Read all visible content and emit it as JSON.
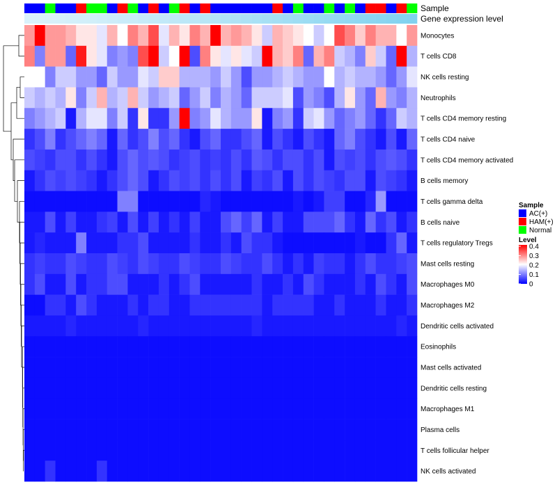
{
  "chart_data": {
    "type": "heatmap",
    "annotation_labels": {
      "sample": "Sample",
      "expression": "Gene expression level"
    },
    "rows": [
      "Monocytes",
      "T cells CD8",
      "NK cells resting",
      "Neutrophils",
      "T cells CD4 memory resting",
      "T cells CD4 naive",
      "T cells CD4 memory activated",
      "B cells memory",
      "T cells gamma delta",
      "B cells naive",
      "T cells regulatory  Tregs",
      "Mast cells resting",
      "Macrophages M0",
      "Macrophages M2",
      "Dendritic cells activated",
      "Eosinophils",
      "Mast cells activated",
      "Dendritic cells resting",
      "Macrophages M1",
      "Plasma cells",
      "T cells follicular helper",
      "NK cells activated"
    ],
    "sample_groups": [
      "AC(+)",
      "AC(+)",
      "Normal",
      "AC(+)",
      "AC(+)",
      "HAM(+)",
      "Normal",
      "Normal",
      "AC(+)",
      "HAM(+)",
      "Normal",
      "AC(+)",
      "HAM(+)",
      "AC(+)",
      "Normal",
      "HAM(+)",
      "AC(+)",
      "HAM(+)",
      "AC(+)",
      "AC(+)",
      "AC(+)",
      "AC(+)",
      "AC(+)",
      "AC(+)",
      "HAM(+)",
      "AC(+)",
      "Normal",
      "AC(+)",
      "AC(+)",
      "Normal",
      "AC(+)",
      "Normal",
      "AC(+)",
      "HAM(+)",
      "HAM(+)",
      "AC(+)",
      "HAM(+)",
      "Normal"
    ],
    "values": [
      [
        0.28,
        0.42,
        0.28,
        0.28,
        0.26,
        0.22,
        0.22,
        0.18,
        0.26,
        0.2,
        0.3,
        0.26,
        0.34,
        0.18,
        0.26,
        0.22,
        0.3,
        0.26,
        0.42,
        0.26,
        0.28,
        0.26,
        0.22,
        0.16,
        0.26,
        0.24,
        0.22,
        0.2,
        0.16,
        0.2,
        0.34,
        0.3,
        0.24,
        0.3,
        0.26,
        0.26,
        0.2,
        0.28
      ],
      [
        0.3,
        0.1,
        0.28,
        0.28,
        0.08,
        0.38,
        0.22,
        0.18,
        0.1,
        0.12,
        0.1,
        0.34,
        0.4,
        0.16,
        0.2,
        0.4,
        0.06,
        0.3,
        0.22,
        0.18,
        0.22,
        0.18,
        0.16,
        0.42,
        0.26,
        0.24,
        0.3,
        0.08,
        0.26,
        0.3,
        0.16,
        0.14,
        0.1,
        0.24,
        0.16,
        0.08,
        0.42,
        0.14
      ],
      [
        0.2,
        0.2,
        0.1,
        0.16,
        0.16,
        0.12,
        0.12,
        0.08,
        0.16,
        0.12,
        0.12,
        0.18,
        0.16,
        0.24,
        0.24,
        0.14,
        0.14,
        0.14,
        0.12,
        0.16,
        0.12,
        0.06,
        0.12,
        0.12,
        0.14,
        0.16,
        0.14,
        0.12,
        0.12,
        0.2,
        0.14,
        0.16,
        0.14,
        0.14,
        0.12,
        0.08,
        0.12,
        0.18
      ],
      [
        0.16,
        0.14,
        0.16,
        0.14,
        0.22,
        0.1,
        0.16,
        0.26,
        0.14,
        0.16,
        0.26,
        0.16,
        0.12,
        0.14,
        0.16,
        0.08,
        0.12,
        0.16,
        0.1,
        0.14,
        0.12,
        0.08,
        0.16,
        0.16,
        0.16,
        0.18,
        0.06,
        0.12,
        0.1,
        0.06,
        0.14,
        0.22,
        0.12,
        0.08,
        0.26,
        0.12,
        0.1,
        0.14
      ],
      [
        0.1,
        0.12,
        0.14,
        0.16,
        0.02,
        0.14,
        0.18,
        0.18,
        0.1,
        0.16,
        0.04,
        0.22,
        0.04,
        0.04,
        0.12,
        0.42,
        0.1,
        0.12,
        0.18,
        0.14,
        0.12,
        0.12,
        0.22,
        0.02,
        0.1,
        0.12,
        0.04,
        0.16,
        0.18,
        0.12,
        0.08,
        0.1,
        0.12,
        0.08,
        0.04,
        0.08,
        0.16,
        0.14
      ],
      [
        0.04,
        0.06,
        0.1,
        0.04,
        0.06,
        0.08,
        0.1,
        0.08,
        0.02,
        0.08,
        0.04,
        0.06,
        0.1,
        0.06,
        0.08,
        0.04,
        0.02,
        0.06,
        0.08,
        0.04,
        0.04,
        0.06,
        0.08,
        0.02,
        0.06,
        0.04,
        0.02,
        0.06,
        0.04,
        0.02,
        0.08,
        0.1,
        0.06,
        0.04,
        0.02,
        0.06,
        0.02,
        0.08
      ],
      [
        0.06,
        0.05,
        0.04,
        0.06,
        0.06,
        0.04,
        0.06,
        0.04,
        0.02,
        0.06,
        0.08,
        0.06,
        0.07,
        0.06,
        0.04,
        0.05,
        0.06,
        0.04,
        0.05,
        0.04,
        0.06,
        0.04,
        0.07,
        0.06,
        0.04,
        0.06,
        0.06,
        0.04,
        0.06,
        0.02,
        0.06,
        0.05,
        0.06,
        0.04,
        0.06,
        0.07,
        0.06,
        0.04
      ],
      [
        0.02,
        0.04,
        0.06,
        0.05,
        0.06,
        0.05,
        0.04,
        0.02,
        0.04,
        0.06,
        0.08,
        0.06,
        0.02,
        0.04,
        0.06,
        0.05,
        0.06,
        0.04,
        0.06,
        0.04,
        0.06,
        0.02,
        0.05,
        0.04,
        0.06,
        0.02,
        0.06,
        0.04,
        0.06,
        0.05,
        0.04,
        0.06,
        0.06,
        0.02,
        0.06,
        0.05,
        0.04,
        0.02
      ],
      [
        0.01,
        0.01,
        0.01,
        0.01,
        0.01,
        0.01,
        0.01,
        0.01,
        0.01,
        0.1,
        0.1,
        0.01,
        0.01,
        0.01,
        0.01,
        0.01,
        0.01,
        0.03,
        0.02,
        0.01,
        0.01,
        0.01,
        0.01,
        0.01,
        0.01,
        0.01,
        0.02,
        0.01,
        0.02,
        0.05,
        0.05,
        0.01,
        0.01,
        0.03,
        0.12,
        0.01,
        0.01,
        0.01
      ],
      [
        0.02,
        0.02,
        0.06,
        0.02,
        0.05,
        0.02,
        0.02,
        0.04,
        0.05,
        0.02,
        0.06,
        0.02,
        0.05,
        0.02,
        0.04,
        0.02,
        0.05,
        0.02,
        0.02,
        0.06,
        0.08,
        0.05,
        0.08,
        0.02,
        0.05,
        0.02,
        0.02,
        0.06,
        0.06,
        0.06,
        0.08,
        0.04,
        0.02,
        0.08,
        0.04,
        0.06,
        0.02,
        0.04
      ],
      [
        0.02,
        0.03,
        0.02,
        0.02,
        0.02,
        0.1,
        0.02,
        0.02,
        0.02,
        0.04,
        0.04,
        0.06,
        0.02,
        0.02,
        0.02,
        0.02,
        0.04,
        0.02,
        0.02,
        0.04,
        0.02,
        0.06,
        0.04,
        0.04,
        0.02,
        0.01,
        0.01,
        0.01,
        0.01,
        0.01,
        0.01,
        0.01,
        0.02,
        0.01,
        0.01,
        0.04,
        0.08,
        0.02
      ],
      [
        0.04,
        0.05,
        0.04,
        0.04,
        0.06,
        0.05,
        0.04,
        0.04,
        0.06,
        0.05,
        0.04,
        0.06,
        0.05,
        0.04,
        0.04,
        0.06,
        0.05,
        0.04,
        0.04,
        0.06,
        0.05,
        0.04,
        0.04,
        0.06,
        0.04,
        0.02,
        0.04,
        0.02,
        0.05,
        0.04,
        0.04,
        0.02,
        0.04,
        0.06,
        0.04,
        0.04,
        0.05,
        0.06
      ],
      [
        0.04,
        0.06,
        0.02,
        0.02,
        0.06,
        0.02,
        0.04,
        0.04,
        0.06,
        0.06,
        0.02,
        0.02,
        0.02,
        0.04,
        0.02,
        0.04,
        0.06,
        0.02,
        0.02,
        0.02,
        0.02,
        0.02,
        0.04,
        0.02,
        0.02,
        0.04,
        0.02,
        0.06,
        0.04,
        0.02,
        0.02,
        0.02,
        0.04,
        0.02,
        0.06,
        0.04,
        0.02,
        0.06
      ],
      [
        0.01,
        0.01,
        0.04,
        0.04,
        0.02,
        0.06,
        0.04,
        0.02,
        0.02,
        0.02,
        0.04,
        0.02,
        0.04,
        0.04,
        0.02,
        0.02,
        0.04,
        0.04,
        0.04,
        0.04,
        0.04,
        0.04,
        0.04,
        0.02,
        0.04,
        0.04,
        0.04,
        0.04,
        0.02,
        0.02,
        0.04,
        0.02,
        0.02,
        0.02,
        0.04,
        0.02,
        0.02,
        0.04
      ],
      [
        0.02,
        0.02,
        0.02,
        0.02,
        0.03,
        0.02,
        0.02,
        0.02,
        0.02,
        0.02,
        0.02,
        0.03,
        0.02,
        0.02,
        0.02,
        0.02,
        0.02,
        0.02,
        0.02,
        0.02,
        0.02,
        0.02,
        0.03,
        0.02,
        0.02,
        0.02,
        0.02,
        0.02,
        0.02,
        0.02,
        0.02,
        0.02,
        0.02,
        0.02,
        0.02,
        0.02,
        0.03,
        0.02
      ],
      [
        0.01,
        0.01,
        0.01,
        0.01,
        0.01,
        0.01,
        0.01,
        0.01,
        0.01,
        0.01,
        0.01,
        0.01,
        0.01,
        0.01,
        0.01,
        0.01,
        0.01,
        0.01,
        0.01,
        0.01,
        0.01,
        0.01,
        0.01,
        0.01,
        0.01,
        0.01,
        0.01,
        0.01,
        0.01,
        0.01,
        0.01,
        0.01,
        0.01,
        0.01,
        0.01,
        0.01,
        0.01,
        0.01
      ],
      [
        0.01,
        0.01,
        0.01,
        0.01,
        0.01,
        0.01,
        0.01,
        0.01,
        0.01,
        0.01,
        0.01,
        0.01,
        0.01,
        0.01,
        0.01,
        0.01,
        0.01,
        0.01,
        0.01,
        0.01,
        0.01,
        0.01,
        0.01,
        0.01,
        0.01,
        0.01,
        0.01,
        0.01,
        0.01,
        0.01,
        0.01,
        0.01,
        0.01,
        0.01,
        0.01,
        0.01,
        0.01,
        0.01
      ],
      [
        0.01,
        0.01,
        0.01,
        0.01,
        0.01,
        0.01,
        0.01,
        0.01,
        0.01,
        0.01,
        0.01,
        0.01,
        0.01,
        0.01,
        0.01,
        0.01,
        0.01,
        0.01,
        0.01,
        0.01,
        0.01,
        0.01,
        0.01,
        0.01,
        0.01,
        0.01,
        0.01,
        0.01,
        0.01,
        0.01,
        0.01,
        0.01,
        0.01,
        0.01,
        0.01,
        0.01,
        0.01,
        0.01
      ],
      [
        0.01,
        0.01,
        0.01,
        0.01,
        0.01,
        0.01,
        0.01,
        0.01,
        0.01,
        0.01,
        0.01,
        0.01,
        0.01,
        0.01,
        0.01,
        0.01,
        0.01,
        0.01,
        0.01,
        0.01,
        0.01,
        0.01,
        0.01,
        0.01,
        0.01,
        0.01,
        0.01,
        0.01,
        0.01,
        0.01,
        0.01,
        0.01,
        0.01,
        0.01,
        0.01,
        0.01,
        0.01,
        0.01
      ],
      [
        0.01,
        0.01,
        0.01,
        0.01,
        0.01,
        0.01,
        0.01,
        0.01,
        0.01,
        0.01,
        0.01,
        0.01,
        0.01,
        0.01,
        0.01,
        0.01,
        0.01,
        0.01,
        0.01,
        0.01,
        0.01,
        0.01,
        0.01,
        0.01,
        0.01,
        0.01,
        0.01,
        0.01,
        0.01,
        0.01,
        0.01,
        0.01,
        0.01,
        0.01,
        0.01,
        0.01,
        0.01,
        0.01
      ],
      [
        0.01,
        0.01,
        0.01,
        0.01,
        0.01,
        0.01,
        0.01,
        0.01,
        0.01,
        0.01,
        0.01,
        0.01,
        0.01,
        0.01,
        0.01,
        0.01,
        0.01,
        0.01,
        0.01,
        0.01,
        0.01,
        0.01,
        0.01,
        0.01,
        0.01,
        0.01,
        0.01,
        0.01,
        0.01,
        0.01,
        0.01,
        0.01,
        0.01,
        0.01,
        0.01,
        0.01,
        0.01,
        0.01
      ],
      [
        0.01,
        0.01,
        0.04,
        0.01,
        0.01,
        0.01,
        0.01,
        0.04,
        0.01,
        0.01,
        0.01,
        0.01,
        0.01,
        0.01,
        0.01,
        0.01,
        0.01,
        0.01,
        0.01,
        0.01,
        0.01,
        0.01,
        0.01,
        0.01,
        0.01,
        0.01,
        0.01,
        0.01,
        0.01,
        0.01,
        0.01,
        0.01,
        0.01,
        0.01,
        0.01,
        0.01,
        0.01,
        0.01
      ]
    ],
    "expression_bar": [
      0.98,
      0.97,
      0.96,
      0.95,
      0.93,
      0.92,
      0.91,
      0.9,
      0.88,
      0.86,
      0.85,
      0.83,
      0.81,
      0.8,
      0.78,
      0.76,
      0.74,
      0.72,
      0.7,
      0.68,
      0.66,
      0.64,
      0.62,
      0.6,
      0.58,
      0.56,
      0.54,
      0.52,
      0.5,
      0.48,
      0.46,
      0.44,
      0.42,
      0.4,
      0.38,
      0.36,
      0.34,
      0.32
    ],
    "legend": {
      "sample_title": "Sample",
      "sample_items": [
        {
          "label": "AC(+)",
          "color": "#0000ff"
        },
        {
          "label": "HAM(+)",
          "color": "#ff0000"
        },
        {
          "label": "Normal",
          "color": "#00ff00"
        }
      ],
      "level_title": "Level",
      "level_ticks": [
        "0.4",
        "0.3",
        "0.2",
        "0.1",
        "0"
      ],
      "level_range": [
        0,
        0.4
      ]
    },
    "colors": {
      "low": "#0000ff",
      "mid": "#ffffff",
      "high": "#ff0000",
      "expr_light": "#ddf3fb",
      "expr_dark": "#55c3ea"
    }
  }
}
